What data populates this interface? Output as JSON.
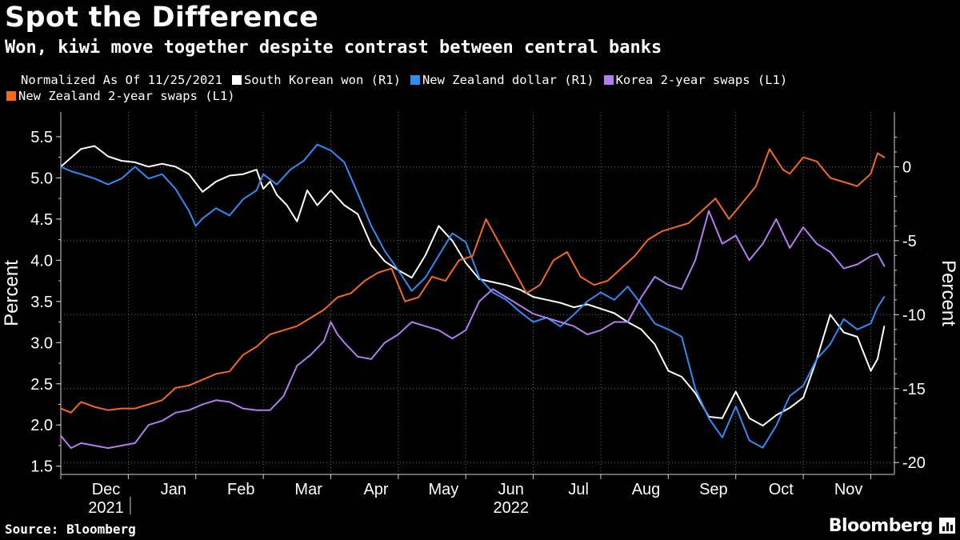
{
  "header": {
    "title": "Spot the Difference",
    "subtitle": "Won, kiwi move together despite contrast between central banks"
  },
  "footer": {
    "source": "Source: Bloomberg",
    "brand": "Bloomberg"
  },
  "chart_data": {
    "type": "line",
    "legend_note": "Normalized As Of 11/25/2021",
    "left_axis": {
      "label": "Percent",
      "ylim": [
        1.4,
        5.8
      ],
      "ticks": [
        "5.5",
        "5.0",
        "4.5",
        "4.0",
        "3.5",
        "3.0",
        "2.5",
        "2.0",
        "1.5"
      ],
      "tick_values": [
        5.5,
        5.0,
        4.5,
        4.0,
        3.5,
        3.0,
        2.5,
        2.0,
        1.5
      ]
    },
    "right_axis": {
      "label": "Percent",
      "ylim": [
        -20.8,
        3.7
      ],
      "ticks": [
        "0",
        "-5",
        "-10",
        "-15",
        "-20"
      ],
      "tick_values": [
        0,
        -5,
        -10,
        -15,
        -20
      ]
    },
    "x_axis": {
      "range": [
        0,
        12.35
      ],
      "month_labels": [
        "Dec",
        "Jan",
        "Feb",
        "Mar",
        "Apr",
        "May",
        "Jun",
        "Jul",
        "Aug",
        "Sep",
        "Oct",
        "Nov"
      ],
      "month_centers": [
        0.67,
        1.67,
        2.67,
        3.67,
        4.67,
        5.67,
        6.67,
        7.67,
        8.67,
        9.67,
        10.67,
        11.67
      ],
      "year_labels": [
        {
          "text": "2021",
          "x": 0.67
        },
        {
          "text": "2022",
          "x": 6.67
        }
      ]
    },
    "grid": true,
    "series": [
      {
        "name": "South Korean won (R1)",
        "axis": "right",
        "color": "#ffffff",
        "x": [
          0,
          0.15,
          0.3,
          0.5,
          0.7,
          0.9,
          1.1,
          1.3,
          1.5,
          1.7,
          1.9,
          2.1,
          2.3,
          2.5,
          2.7,
          2.9,
          3.0,
          3.1,
          3.2,
          3.35,
          3.5,
          3.65,
          3.8,
          4.0,
          4.2,
          4.4,
          4.6,
          4.8,
          5.0,
          5.2,
          5.4,
          5.6,
          5.8,
          6.0,
          6.2,
          6.4,
          6.6,
          6.8,
          7.0,
          7.2,
          7.4,
          7.6,
          7.8,
          8.0,
          8.2,
          8.4,
          8.6,
          8.8,
          9.0,
          9.2,
          9.4,
          9.6,
          9.8,
          10.0,
          10.2,
          10.4,
          10.6,
          10.8,
          11.0,
          11.2,
          11.4,
          11.6,
          11.8,
          12.0,
          12.1,
          12.2
        ],
        "values": [
          0,
          0.6,
          1.2,
          1.4,
          0.7,
          0.4,
          0.3,
          0,
          0.2,
          0,
          -0.5,
          -1.7,
          -1.0,
          -0.6,
          -0.5,
          -0.2,
          -1.5,
          -1.0,
          -1.9,
          -2.6,
          -3.7,
          -1.6,
          -2.6,
          -1.6,
          -2.6,
          -3.2,
          -5.3,
          -6.4,
          -7.0,
          -7.5,
          -6.0,
          -4.0,
          -5.0,
          -6.5,
          -7.6,
          -7.8,
          -8.0,
          -8.3,
          -8.8,
          -9.0,
          -9.2,
          -9.5,
          -9.3,
          -9.6,
          -9.9,
          -10.5,
          -11.0,
          -12.0,
          -13.8,
          -14.2,
          -15.3,
          -16.9,
          -17.0,
          -15.2,
          -17.0,
          -17.5,
          -16.8,
          -16.3,
          -15.6,
          -13.0,
          -10.0,
          -11.2,
          -11.5,
          -13.8,
          -13.0,
          -10.8
        ]
      },
      {
        "name": "New Zealand dollar (R1)",
        "axis": "right",
        "color": "#2f8cf5",
        "x": [
          0,
          0.15,
          0.3,
          0.5,
          0.7,
          0.9,
          1.1,
          1.3,
          1.5,
          1.7,
          1.9,
          2.0,
          2.1,
          2.3,
          2.5,
          2.7,
          2.9,
          3.0,
          3.2,
          3.4,
          3.6,
          3.8,
          4.0,
          4.2,
          4.4,
          4.6,
          4.8,
          5.0,
          5.2,
          5.4,
          5.6,
          5.8,
          6.0,
          6.2,
          6.4,
          6.6,
          6.8,
          7.0,
          7.2,
          7.4,
          7.6,
          7.8,
          8.0,
          8.2,
          8.4,
          8.6,
          8.8,
          9.0,
          9.2,
          9.4,
          9.6,
          9.8,
          10.0,
          10.2,
          10.4,
          10.6,
          10.8,
          11.0,
          11.2,
          11.4,
          11.6,
          11.8,
          12.0,
          12.1,
          12.2
        ],
        "values": [
          0,
          -0.3,
          -0.5,
          -0.8,
          -1.2,
          -0.8,
          0,
          -0.8,
          -0.5,
          -1.5,
          -3.0,
          -4.0,
          -3.5,
          -2.8,
          -3.3,
          -2.2,
          -1.6,
          -0.5,
          -1.2,
          -0.2,
          0.4,
          1.5,
          1.1,
          0.3,
          -1.8,
          -4.0,
          -5.7,
          -7.0,
          -8.4,
          -7.5,
          -6.0,
          -4.5,
          -5.1,
          -7.5,
          -8.5,
          -9.0,
          -9.8,
          -10.5,
          -10.2,
          -10.8,
          -10.0,
          -9.1,
          -8.5,
          -9.0,
          -8.1,
          -9.3,
          -10.6,
          -11.0,
          -11.5,
          -15.0,
          -17.0,
          -18.3,
          -16.2,
          -18.5,
          -19.0,
          -17.5,
          -15.5,
          -14.8,
          -13.0,
          -12.0,
          -10.3,
          -11.0,
          -10.6,
          -9.5,
          -8.8
        ]
      },
      {
        "name": "Korea 2-year swaps (L1)",
        "axis": "left",
        "color": "#b37cf0",
        "x": [
          0,
          0.15,
          0.3,
          0.5,
          0.7,
          0.9,
          1.1,
          1.3,
          1.5,
          1.7,
          1.9,
          2.1,
          2.3,
          2.5,
          2.7,
          2.9,
          3.1,
          3.3,
          3.5,
          3.7,
          3.9,
          4.0,
          4.1,
          4.2,
          4.4,
          4.6,
          4.8,
          5.0,
          5.2,
          5.4,
          5.6,
          5.8,
          6.0,
          6.2,
          6.4,
          6.6,
          6.8,
          7.0,
          7.2,
          7.4,
          7.6,
          7.8,
          8.0,
          8.2,
          8.4,
          8.6,
          8.8,
          9.0,
          9.2,
          9.4,
          9.6,
          9.8,
          10.0,
          10.2,
          10.4,
          10.6,
          10.8,
          11.0,
          11.2,
          11.4,
          11.6,
          11.8,
          12.0,
          12.1,
          12.2
        ],
        "values": [
          1.87,
          1.72,
          1.78,
          1.75,
          1.72,
          1.75,
          1.78,
          2.0,
          2.05,
          2.15,
          2.18,
          2.25,
          2.3,
          2.28,
          2.2,
          2.18,
          2.18,
          2.35,
          2.72,
          2.85,
          3.02,
          3.25,
          3.1,
          3.0,
          2.83,
          2.8,
          3.0,
          3.1,
          3.25,
          3.2,
          3.15,
          3.05,
          3.15,
          3.5,
          3.65,
          3.55,
          3.45,
          3.35,
          3.3,
          3.25,
          3.2,
          3.1,
          3.15,
          3.25,
          3.25,
          3.55,
          3.8,
          3.7,
          3.65,
          4.0,
          4.6,
          4.2,
          4.3,
          4.0,
          4.2,
          4.5,
          4.15,
          4.4,
          4.2,
          4.1,
          3.9,
          3.95,
          4.05,
          4.08,
          3.93
        ]
      },
      {
        "name": "New Zealand 2-year swaps (L1)",
        "axis": "left",
        "color": "#f46a1c",
        "x": [
          0,
          0.15,
          0.3,
          0.5,
          0.7,
          0.9,
          1.1,
          1.3,
          1.5,
          1.7,
          1.9,
          2.1,
          2.3,
          2.5,
          2.7,
          2.9,
          3.1,
          3.3,
          3.5,
          3.7,
          3.9,
          4.1,
          4.3,
          4.5,
          4.7,
          4.9,
          5.1,
          5.3,
          5.5,
          5.7,
          5.9,
          6.1,
          6.3,
          6.5,
          6.7,
          6.9,
          7.1,
          7.3,
          7.5,
          7.7,
          7.9,
          8.1,
          8.3,
          8.5,
          8.7,
          8.9,
          9.1,
          9.3,
          9.5,
          9.7,
          9.9,
          10.1,
          10.3,
          10.5,
          10.7,
          10.8,
          10.9,
          11.0,
          11.2,
          11.4,
          11.6,
          11.8,
          12.0,
          12.1,
          12.2
        ],
        "values": [
          2.2,
          2.15,
          2.28,
          2.22,
          2.18,
          2.2,
          2.2,
          2.25,
          2.3,
          2.45,
          2.48,
          2.55,
          2.62,
          2.65,
          2.85,
          2.95,
          3.1,
          3.15,
          3.2,
          3.3,
          3.4,
          3.55,
          3.6,
          3.75,
          3.85,
          3.9,
          3.5,
          3.55,
          3.8,
          3.75,
          4.0,
          4.05,
          4.5,
          4.2,
          3.9,
          3.6,
          3.7,
          4.0,
          4.1,
          3.8,
          3.7,
          3.75,
          3.9,
          4.05,
          4.25,
          4.35,
          4.4,
          4.45,
          4.6,
          4.75,
          4.5,
          4.7,
          4.9,
          5.35,
          5.1,
          5.05,
          5.15,
          5.25,
          5.2,
          5.0,
          4.95,
          4.9,
          5.05,
          5.3,
          5.25
        ]
      }
    ]
  }
}
